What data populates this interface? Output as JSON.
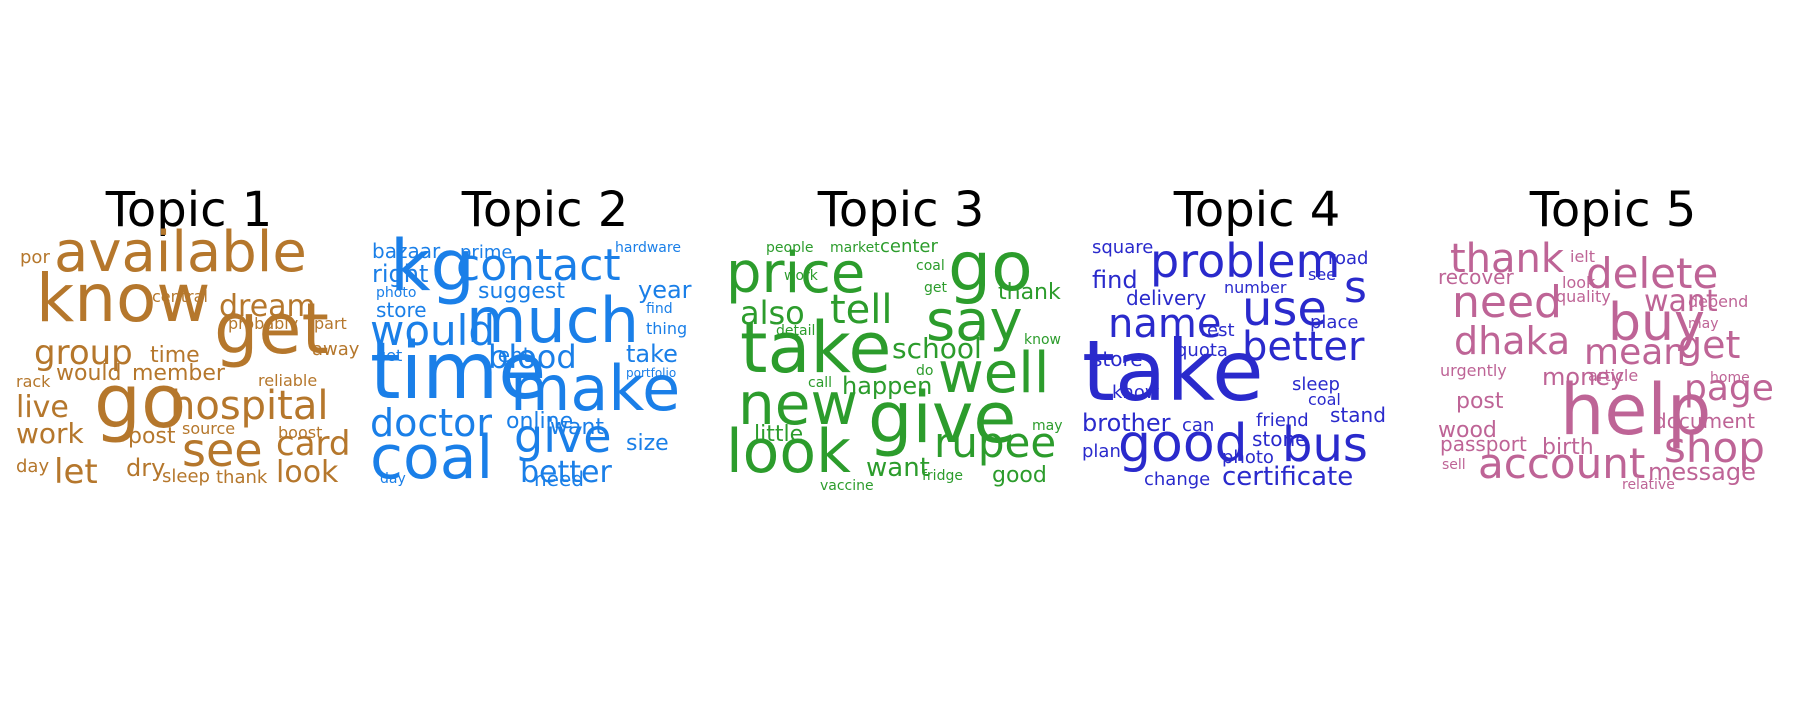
{
  "topics": [
    {
      "title": "Topic 1",
      "color": "#b5772c",
      "words": [
        "available",
        "know",
        "go",
        "get",
        "hospital",
        "see",
        "group",
        "dream",
        "live",
        "work",
        "let",
        "card",
        "look",
        "would",
        "member",
        "time",
        "post",
        "dry",
        "sleep",
        "thank",
        "day",
        "por",
        "central",
        "probably",
        "part",
        "away",
        "rack",
        "reliable",
        "source",
        "boost"
      ]
    },
    {
      "title": "Topic 2",
      "color": "#1a7fe8",
      "words": [
        "kg",
        "contact",
        "much",
        "time",
        "make",
        "would",
        "coal",
        "doctor",
        "give",
        "blood",
        "better",
        "right",
        "bazaar",
        "prime",
        "hardware",
        "suggest",
        "year",
        "store",
        "photo",
        "find",
        "thing",
        "get",
        "rent",
        "take",
        "portfolio",
        "online",
        "want",
        "size",
        "need",
        "day"
      ]
    },
    {
      "title": "Topic 3",
      "color": "#2c9c2c",
      "words": [
        "price",
        "go",
        "take",
        "say",
        "tell",
        "also",
        "well",
        "give",
        "new",
        "look",
        "rupee",
        "school",
        "happen",
        "little",
        "want",
        "good",
        "thank",
        "people",
        "market",
        "center",
        "coal",
        "work",
        "get",
        "detail",
        "know",
        "do",
        "call",
        "may",
        "fridge",
        "vaccine"
      ]
    },
    {
      "title": "Topic 4",
      "color": "#2a2acc",
      "words": [
        "take",
        "problem",
        "use",
        "name",
        "better",
        "good",
        "bus",
        "s",
        "find",
        "square",
        "road",
        "see",
        "number",
        "delivery",
        "test",
        "quota",
        "place",
        "store",
        "know",
        "sleep",
        "coal",
        "brother",
        "can",
        "friend",
        "stand",
        "stone",
        "plan",
        "photo",
        "change",
        "certificate"
      ]
    },
    {
      "title": "Topic 5",
      "color": "#be6496",
      "words": [
        "help",
        "thank",
        "delete",
        "need",
        "buy",
        "want",
        "dhaka",
        "mean",
        "get",
        "page",
        "shop",
        "account",
        "money",
        "post",
        "wood",
        "birth",
        "passport",
        "message",
        "document",
        "recover",
        "ielt",
        "look",
        "quality",
        "depend",
        "may",
        "urgently",
        "article",
        "home",
        "sell",
        "relative"
      ]
    }
  ]
}
